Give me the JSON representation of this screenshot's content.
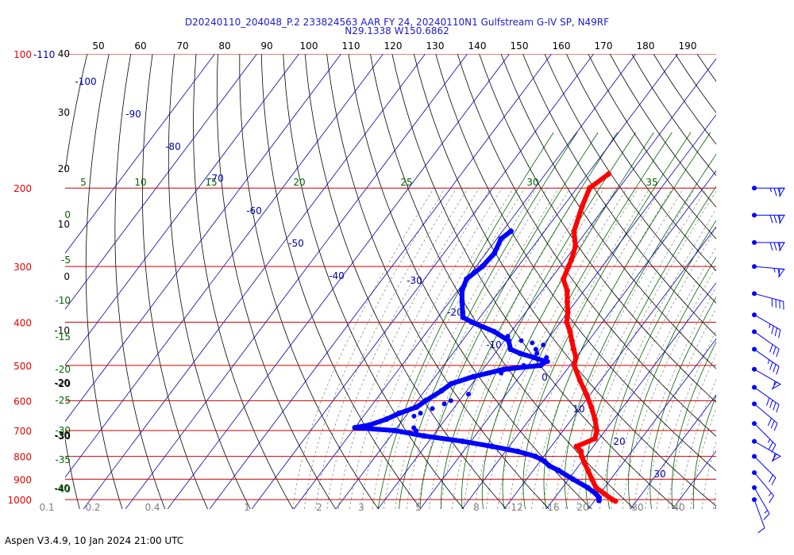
{
  "chart_data": {
    "type": "scatter",
    "title_line1": "D20240110_204048_P.2 233824563 AAR FY 24, 20240110N1 Gulfstream G-IV SP, N49RF",
    "title_line2": "N29.1338 W150.6862",
    "footer": "Aspen V3.4.9, 10 Jan 2024  21:00 UTC",
    "pressure_levels": [
      "100",
      "200",
      "300",
      "400",
      "500",
      "600",
      "700",
      "800",
      "900",
      "1000"
    ],
    "pressure_level_values": [
      100,
      200,
      300,
      400,
      500,
      600,
      700,
      800,
      900,
      1000
    ],
    "top_pressure_suffix": "-110",
    "temperature_F_ticks": [
      "50",
      "60",
      "70",
      "80",
      "90",
      "100",
      "110",
      "120",
      "130",
      "140",
      "150",
      "160",
      "170",
      "180",
      "190"
    ],
    "temperature_F_values": [
      50,
      60,
      70,
      80,
      90,
      100,
      110,
      120,
      130,
      140,
      150,
      160,
      170,
      180,
      190
    ],
    "height_kft_labels": [
      "40",
      "30",
      "20",
      "10",
      "0",
      "-10",
      "-20",
      "-30",
      "-40"
    ],
    "isotherm_C_labels": [
      "-100",
      "-90",
      "-80",
      "-70",
      "-60",
      "-50",
      "-40",
      "-30",
      "-20",
      "-10",
      "0",
      "10",
      "20",
      "30"
    ],
    "mixing_ratio_labels_top": [
      "5",
      "10",
      "15",
      "20",
      "25",
      "30",
      "35"
    ],
    "mixing_ratio_labels_bottom": [
      "0.1",
      "0.2",
      "0.4",
      "1",
      "2",
      "3",
      "5",
      "8",
      "12",
      "16",
      "20",
      "30",
      "40"
    ],
    "dry_adiabat_labels": [
      "0",
      "-5",
      "-10",
      "-15",
      "-20",
      "-25",
      "-30",
      "-35",
      "-40"
    ],
    "extra_left_labels": [
      "-20",
      "-30"
    ],
    "temperature_profile": {
      "name": "",
      "color": "#ff0000",
      "points": [
        [
          186,
          -45
        ],
        [
          200,
          -47
        ],
        [
          220,
          -45.5
        ],
        [
          250,
          -43
        ],
        [
          270,
          -40
        ],
        [
          290,
          -38.5
        ],
        [
          300,
          -38
        ],
        [
          320,
          -37
        ],
        [
          340,
          -34
        ],
        [
          360,
          -32
        ],
        [
          380,
          -30
        ],
        [
          400,
          -28.5
        ],
        [
          420,
          -26
        ],
        [
          440,
          -24
        ],
        [
          460,
          -22
        ],
        [
          480,
          -20
        ],
        [
          500,
          -19
        ],
        [
          540,
          -15
        ],
        [
          580,
          -11
        ],
        [
          620,
          -7.5
        ],
        [
          660,
          -4.5
        ],
        [
          700,
          -2
        ],
        [
          730,
          -1
        ],
        [
          760,
          -4
        ],
        [
          780,
          -2
        ],
        [
          800,
          -1
        ],
        [
          830,
          1
        ],
        [
          860,
          3
        ],
        [
          900,
          5.5
        ],
        [
          940,
          8
        ],
        [
          970,
          11
        ],
        [
          1000,
          14
        ],
        [
          1008,
          15
        ]
      ]
    },
    "dewpoint_profile": {
      "name": "",
      "color": "#0000ff",
      "points": [
        [
          250,
          -58
        ],
        [
          260,
          -59
        ],
        [
          280,
          -58
        ],
        [
          300,
          -58.5
        ],
        [
          320,
          -60
        ],
        [
          340,
          -59
        ],
        [
          360,
          -57
        ],
        [
          380,
          -55
        ],
        [
          390,
          -54
        ],
        [
          400,
          -51
        ],
        [
          420,
          -44
        ],
        [
          440,
          -39
        ],
        [
          460,
          -37
        ],
        [
          470,
          -34
        ],
        [
          480,
          -30
        ],
        [
          490,
          -26.5
        ],
        [
          500,
          -27
        ],
        [
          510,
          -35
        ],
        [
          530,
          -41
        ],
        [
          550,
          -45
        ],
        [
          570,
          -46
        ],
        [
          600,
          -48
        ],
        [
          620,
          -49
        ],
        [
          640,
          -52
        ],
        [
          660,
          -54
        ],
        [
          680,
          -57
        ],
        [
          690,
          -60
        ],
        [
          700,
          -50
        ],
        [
          720,
          -42
        ],
        [
          740,
          -32
        ],
        [
          760,
          -24
        ],
        [
          780,
          -17
        ],
        [
          800,
          -12
        ],
        [
          820,
          -9
        ],
        [
          840,
          -7
        ],
        [
          860,
          -4
        ],
        [
          900,
          1
        ],
        [
          940,
          6
        ],
        [
          970,
          9
        ],
        [
          990,
          10.5
        ],
        [
          1005,
          11
        ]
      ]
    },
    "dewpoint_scatter": [
      [
        430,
        -40
      ],
      [
        440,
        -36
      ],
      [
        445,
        -33
      ],
      [
        450,
        -30
      ],
      [
        460,
        -31
      ],
      [
        470,
        -30
      ],
      [
        480,
        -27
      ],
      [
        490,
        -26
      ],
      [
        500,
        -31
      ],
      [
        510,
        -34
      ],
      [
        520,
        -35
      ],
      [
        580,
        -39
      ],
      [
        600,
        -42
      ],
      [
        610,
        -43
      ],
      [
        625,
        -45
      ],
      [
        640,
        -47
      ],
      [
        650,
        -48
      ],
      [
        690,
        -46
      ],
      [
        700,
        -45
      ]
    ],
    "wind_barbs": [
      {
        "pressure": 200,
        "speed_kt": 75,
        "dir_deg": 270
      },
      {
        "pressure": 230,
        "speed_kt": 80,
        "dir_deg": 270
      },
      {
        "pressure": 265,
        "speed_kt": 80,
        "dir_deg": 270
      },
      {
        "pressure": 300,
        "speed_kt": 65,
        "dir_deg": 275
      },
      {
        "pressure": 345,
        "speed_kt": 40,
        "dir_deg": 285
      },
      {
        "pressure": 385,
        "speed_kt": 35,
        "dir_deg": 300
      },
      {
        "pressure": 420,
        "speed_kt": 30,
        "dir_deg": 305
      },
      {
        "pressure": 460,
        "speed_kt": 35,
        "dir_deg": 305
      },
      {
        "pressure": 510,
        "speed_kt": 55,
        "dir_deg": 300
      },
      {
        "pressure": 560,
        "speed_kt": 40,
        "dir_deg": 305
      },
      {
        "pressure": 610,
        "speed_kt": 30,
        "dir_deg": 310
      },
      {
        "pressure": 675,
        "speed_kt": 25,
        "dir_deg": 315
      },
      {
        "pressure": 740,
        "speed_kt": 60,
        "dir_deg": 300
      },
      {
        "pressure": 800,
        "speed_kt": 20,
        "dir_deg": 315
      },
      {
        "pressure": 870,
        "speed_kt": 15,
        "dir_deg": 320
      },
      {
        "pressure": 940,
        "speed_kt": 15,
        "dir_deg": 330
      },
      {
        "pressure": 1000,
        "speed_kt": 10,
        "dir_deg": 340
      }
    ],
    "colors": {
      "isobar": "#cc0000",
      "isotherm": "#0000aa",
      "dry_adiabat": "#000000",
      "moist_adiabat": "#006400",
      "mixing_ratio": "#7f7f7f",
      "pressure_label": "#e60000",
      "title": "#1b1bd0"
    }
  }
}
